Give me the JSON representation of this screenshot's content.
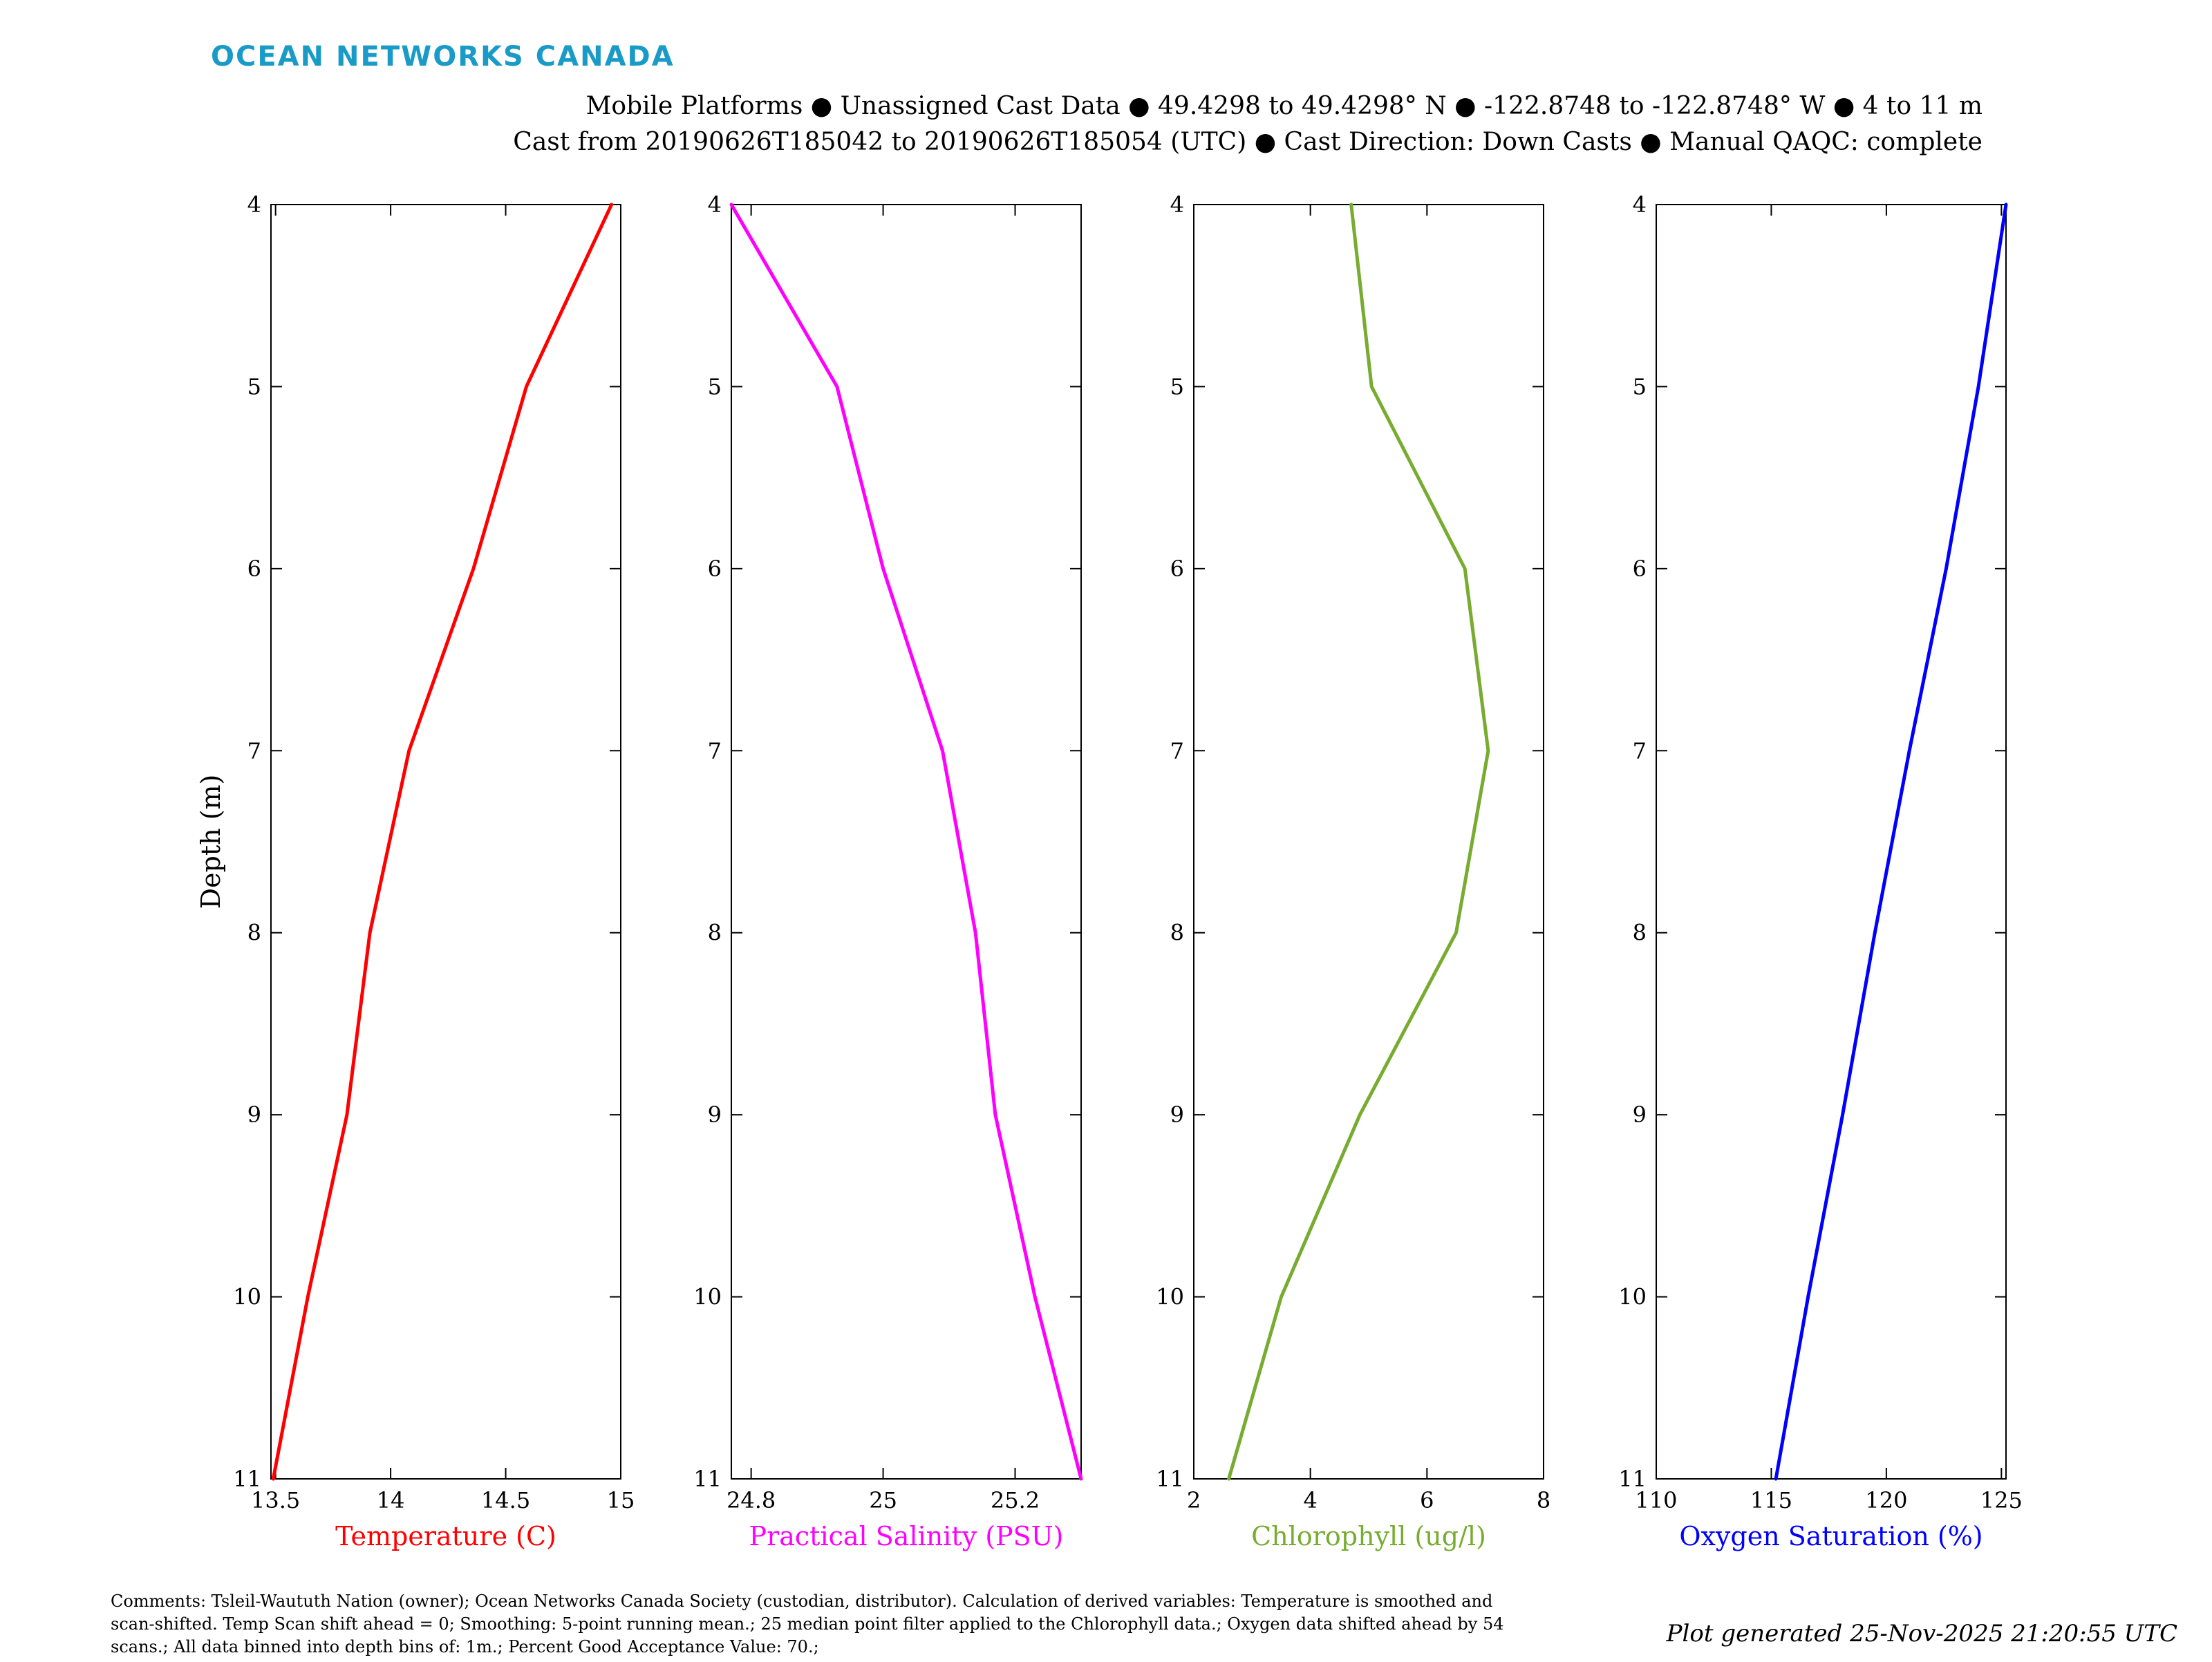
{
  "header": {
    "brand": "OCEAN NETWORKS CANADA",
    "brand_color": "#1a9bc7",
    "line1": "Mobile Platforms ● Unassigned Cast Data ● 49.4298 to 49.4298° N ● -122.8748 to -122.8748° W ● 4 to 11 m",
    "line2": "Cast from 20190626T185042 to 20190626T185054 (UTC) ● Cast Direction: Down Casts ● Manual QAQC: complete"
  },
  "footer": {
    "comments_line1": "Comments: Tsleil-Waututh Nation (owner); Ocean Networks Canada Society (custodian, distributor). Calculation of derived variables: Temperature is smoothed and",
    "comments_line2": "scan-shifted. Temp Scan shift ahead = 0; Smoothing: 5-point running mean.; 25 median point filter applied to the Chlorophyll data.; Oxygen data shifted ahead by 54",
    "comments_line3": "scans.; All data binned into depth bins of: 1m.; Percent Good Acceptance Value: 70.;",
    "generated": "Plot generated 25-Nov-2025 21:20:55 UTC"
  },
  "chart_data": [
    {
      "type": "line",
      "xlabel": "Temperature (C)",
      "ylabel": "Depth (m)",
      "color": "#ff0000",
      "xlim": [
        13.48,
        15.0
      ],
      "ylim": [
        4,
        11
      ],
      "y_reversed": true,
      "xticks": [
        13.5,
        14,
        14.5,
        15
      ],
      "xtick_labels": [
        "13.5",
        "14",
        "14.5",
        "15"
      ],
      "yticks": [
        4,
        5,
        6,
        7,
        8,
        9,
        10,
        11
      ],
      "ytick_labels": [
        "4",
        "5",
        "6",
        "7",
        "8",
        "9",
        "10",
        "11"
      ],
      "depth": [
        4,
        5,
        6,
        7,
        8,
        9,
        10,
        11
      ],
      "values": [
        14.96,
        14.59,
        14.36,
        14.08,
        13.91,
        13.81,
        13.64,
        13.49
      ]
    },
    {
      "type": "line",
      "xlabel": "Practical Salinity (PSU)",
      "ylabel": "",
      "color": "#ff00ff",
      "xlim": [
        24.77,
        25.3
      ],
      "ylim": [
        4,
        11
      ],
      "y_reversed": true,
      "xticks": [
        24.8,
        25,
        25.2
      ],
      "xtick_labels": [
        "24.8",
        "25",
        "25.2"
      ],
      "yticks": [
        4,
        5,
        6,
        7,
        8,
        9,
        10,
        11
      ],
      "ytick_labels": [
        "4",
        "5",
        "6",
        "7",
        "8",
        "9",
        "10",
        "11"
      ],
      "depth": [
        4,
        5,
        6,
        7,
        8,
        9,
        10,
        11
      ],
      "values": [
        24.77,
        24.93,
        25.0,
        25.09,
        25.14,
        25.17,
        25.23,
        25.3
      ]
    },
    {
      "type": "line",
      "xlabel": "Chlorophyll (ug/l)",
      "ylabel": "",
      "color": "#77ac30",
      "xlim": [
        2,
        8
      ],
      "ylim": [
        4,
        11
      ],
      "y_reversed": true,
      "xticks": [
        2,
        4,
        6,
        8
      ],
      "xtick_labels": [
        "2",
        "4",
        "6",
        "8"
      ],
      "yticks": [
        4,
        5,
        6,
        7,
        8,
        9,
        10,
        11
      ],
      "ytick_labels": [
        "4",
        "5",
        "6",
        "7",
        "8",
        "9",
        "10",
        "11"
      ],
      "depth": [
        4,
        5,
        6,
        7,
        8,
        9,
        10,
        11
      ],
      "values": [
        4.7,
        5.05,
        6.65,
        7.05,
        6.5,
        4.85,
        3.5,
        2.6
      ]
    },
    {
      "type": "line",
      "xlabel": "Oxygen Saturation (%)",
      "ylabel": "",
      "color": "#0000ff",
      "xlim": [
        110,
        125.2
      ],
      "ylim": [
        4,
        11
      ],
      "y_reversed": true,
      "xticks": [
        110,
        115,
        120,
        125
      ],
      "xtick_labels": [
        "110",
        "115",
        "120",
        "125"
      ],
      "yticks": [
        4,
        5,
        6,
        7,
        8,
        9,
        10,
        11
      ],
      "ytick_labels": [
        "4",
        "5",
        "6",
        "7",
        "8",
        "9",
        "10",
        "11"
      ],
      "depth": [
        4,
        5,
        6,
        7,
        8,
        9,
        10,
        11
      ],
      "values": [
        125.2,
        124.0,
        122.6,
        121.0,
        119.5,
        118.1,
        116.6,
        115.2
      ]
    }
  ]
}
